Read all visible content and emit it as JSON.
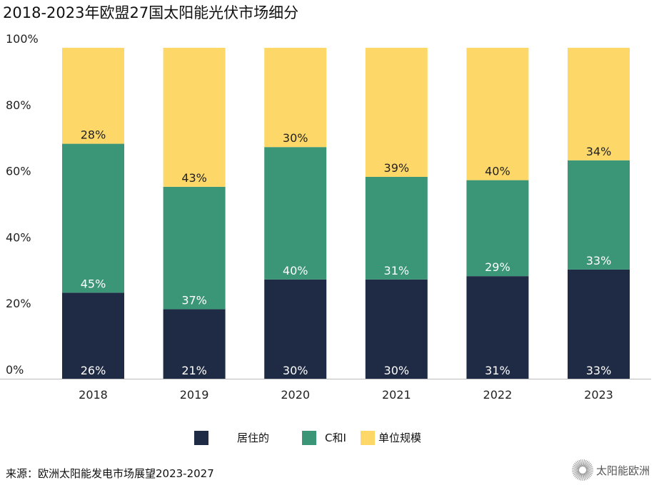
{
  "chart_data": {
    "type": "bar",
    "stacked": true,
    "title": "2018-2023年欧盟27国太阳能光伏市场细分",
    "categories": [
      "2018",
      "2019",
      "2020",
      "2021",
      "2022",
      "2023"
    ],
    "series": [
      {
        "name": "居住的",
        "color": "#1f2a44",
        "values": [
          26,
          21,
          30,
          30,
          31,
          33
        ]
      },
      {
        "name": "C和I",
        "color": "#3a9677",
        "values": [
          45,
          37,
          40,
          31,
          29,
          33
        ]
      },
      {
        "name": "单位规模",
        "color": "#fdd868",
        "values": [
          28,
          43,
          30,
          39,
          40,
          34
        ]
      }
    ],
    "ylim": [
      0,
      100
    ],
    "yticks": [
      "0%",
      "20%",
      "40%",
      "60%",
      "80%",
      "100%"
    ],
    "grid": false,
    "legend_position": "bottom"
  },
  "source": "来源：欧洲太阳能发电市场展望2023-2027",
  "logo_text": "太阳能欧洲"
}
